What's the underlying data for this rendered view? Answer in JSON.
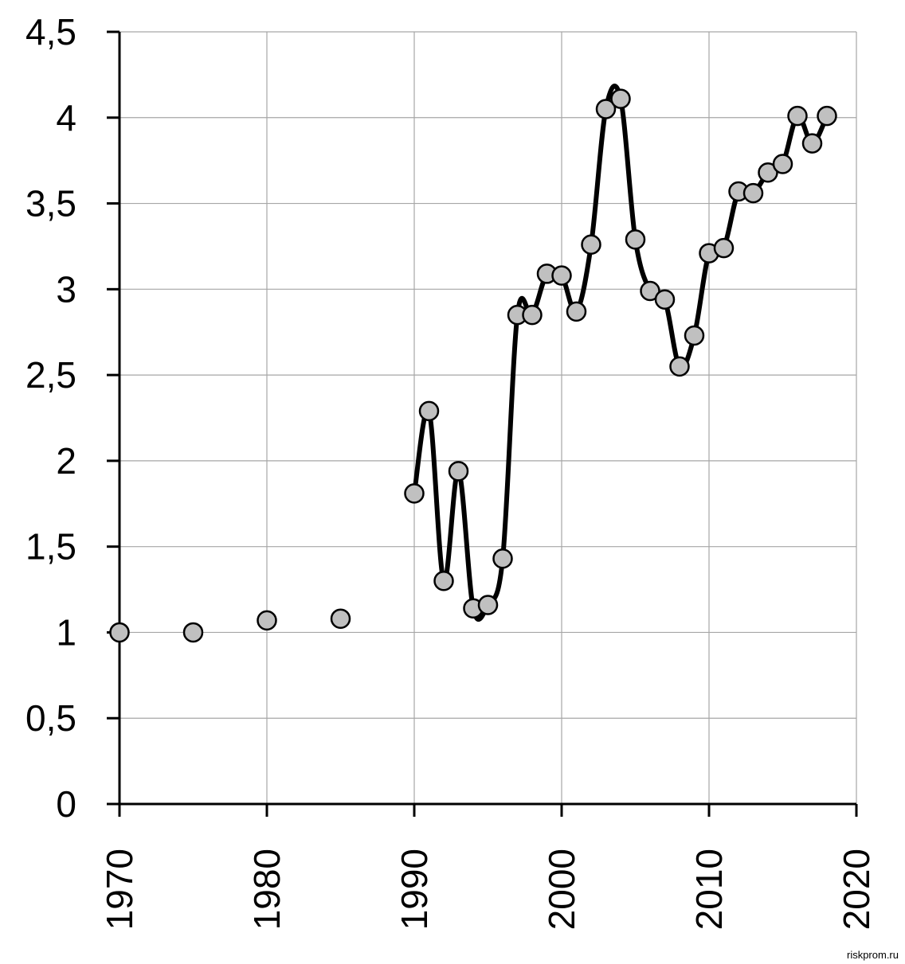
{
  "chart_data": {
    "type": "line",
    "title": "",
    "xlabel": "",
    "ylabel": "",
    "xlim": [
      1970,
      2020
    ],
    "ylim": [
      0,
      4.5
    ],
    "grid": true,
    "y_ticks": [
      {
        "value": 0,
        "label": "0"
      },
      {
        "value": 0.5,
        "label": "0,5"
      },
      {
        "value": 1,
        "label": "1"
      },
      {
        "value": 1.5,
        "label": "1,5"
      },
      {
        "value": 2,
        "label": "2"
      },
      {
        "value": 2.5,
        "label": "2,5"
      },
      {
        "value": 3,
        "label": "3"
      },
      {
        "value": 3.5,
        "label": "3,5"
      },
      {
        "value": 4,
        "label": "4"
      },
      {
        "value": 4.5,
        "label": "4,5"
      }
    ],
    "x_ticks": [
      {
        "value": 1970,
        "label": "1970"
      },
      {
        "value": 1980,
        "label": "1980"
      },
      {
        "value": 1990,
        "label": "1990"
      },
      {
        "value": 2000,
        "label": "2000"
      },
      {
        "value": 2010,
        "label": "2010"
      },
      {
        "value": 2020,
        "label": "2020"
      }
    ],
    "series": [
      {
        "points": [
          [
            1970,
            1.0
          ],
          [
            1975,
            1.0
          ],
          [
            1980,
            1.07
          ],
          [
            1985,
            1.08
          ],
          [
            1990,
            1.81
          ],
          [
            1991,
            2.29
          ],
          [
            1992,
            1.3
          ],
          [
            1993,
            1.94
          ],
          [
            1994,
            1.14
          ],
          [
            1995,
            1.16
          ],
          [
            1996,
            1.43
          ],
          [
            1997,
            2.85
          ],
          [
            1998,
            2.85
          ],
          [
            1999,
            3.09
          ],
          [
            2000,
            3.08
          ],
          [
            2001,
            2.87
          ],
          [
            2002,
            3.26
          ],
          [
            2003,
            4.05
          ],
          [
            2004,
            4.11
          ],
          [
            2005,
            3.29
          ],
          [
            2006,
            2.99
          ],
          [
            2007,
            2.94
          ],
          [
            2008,
            2.55
          ],
          [
            2009,
            2.73
          ],
          [
            2010,
            3.21
          ],
          [
            2011,
            3.24
          ],
          [
            2012,
            3.57
          ],
          [
            2013,
            3.56
          ],
          [
            2014,
            3.68
          ],
          [
            2015,
            3.73
          ],
          [
            2016,
            4.01
          ],
          [
            2017,
            3.85
          ],
          [
            2018,
            4.01
          ]
        ],
        "line_from_year": 1990,
        "marker_color": "#c0c0c0",
        "line_color": "#000000"
      }
    ]
  },
  "watermark": "riskprom.ru",
  "colors": {
    "grid": "#a6a6a6",
    "axis": "#000000",
    "marker_fill": "#c0c0c0"
  }
}
